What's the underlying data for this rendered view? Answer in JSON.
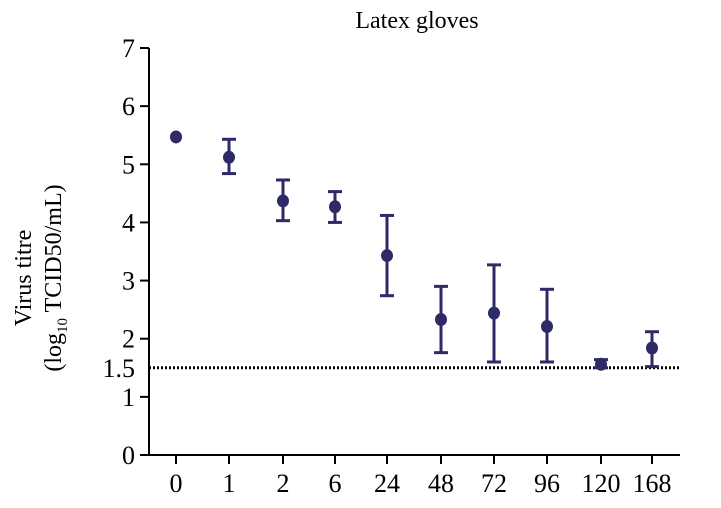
{
  "chart_data": {
    "type": "scatter",
    "title": "Latex gloves",
    "ylabel_line1": "Virus titre",
    "ylabel_line2_prefix": "(log",
    "ylabel_line2_sub": "10",
    "ylabel_line2_suffix": " TCID50/mL)",
    "ylim": [
      0,
      7
    ],
    "yticks": [
      "0",
      "1",
      "2",
      "3",
      "4",
      "5",
      "6",
      "7"
    ],
    "threshold": {
      "value": 1.5,
      "label": "1.5",
      "style": "dotted"
    },
    "categories": [
      "0",
      "1",
      "2",
      "6",
      "24",
      "48",
      "72",
      "96",
      "120",
      "168"
    ],
    "series": [
      {
        "color": "#2e2a66",
        "values": [
          5.47,
          5.12,
          4.37,
          4.27,
          3.43,
          2.33,
          2.44,
          2.21,
          1.56,
          1.84
        ],
        "err_low": [
          5.47,
          4.84,
          4.03,
          4.0,
          2.74,
          1.76,
          1.6,
          1.6,
          1.5,
          1.52
        ],
        "err_high": [
          5.47,
          5.43,
          4.73,
          4.53,
          4.12,
          2.9,
          3.27,
          2.85,
          1.64,
          2.12
        ]
      }
    ],
    "grid": false,
    "legend": "none"
  }
}
